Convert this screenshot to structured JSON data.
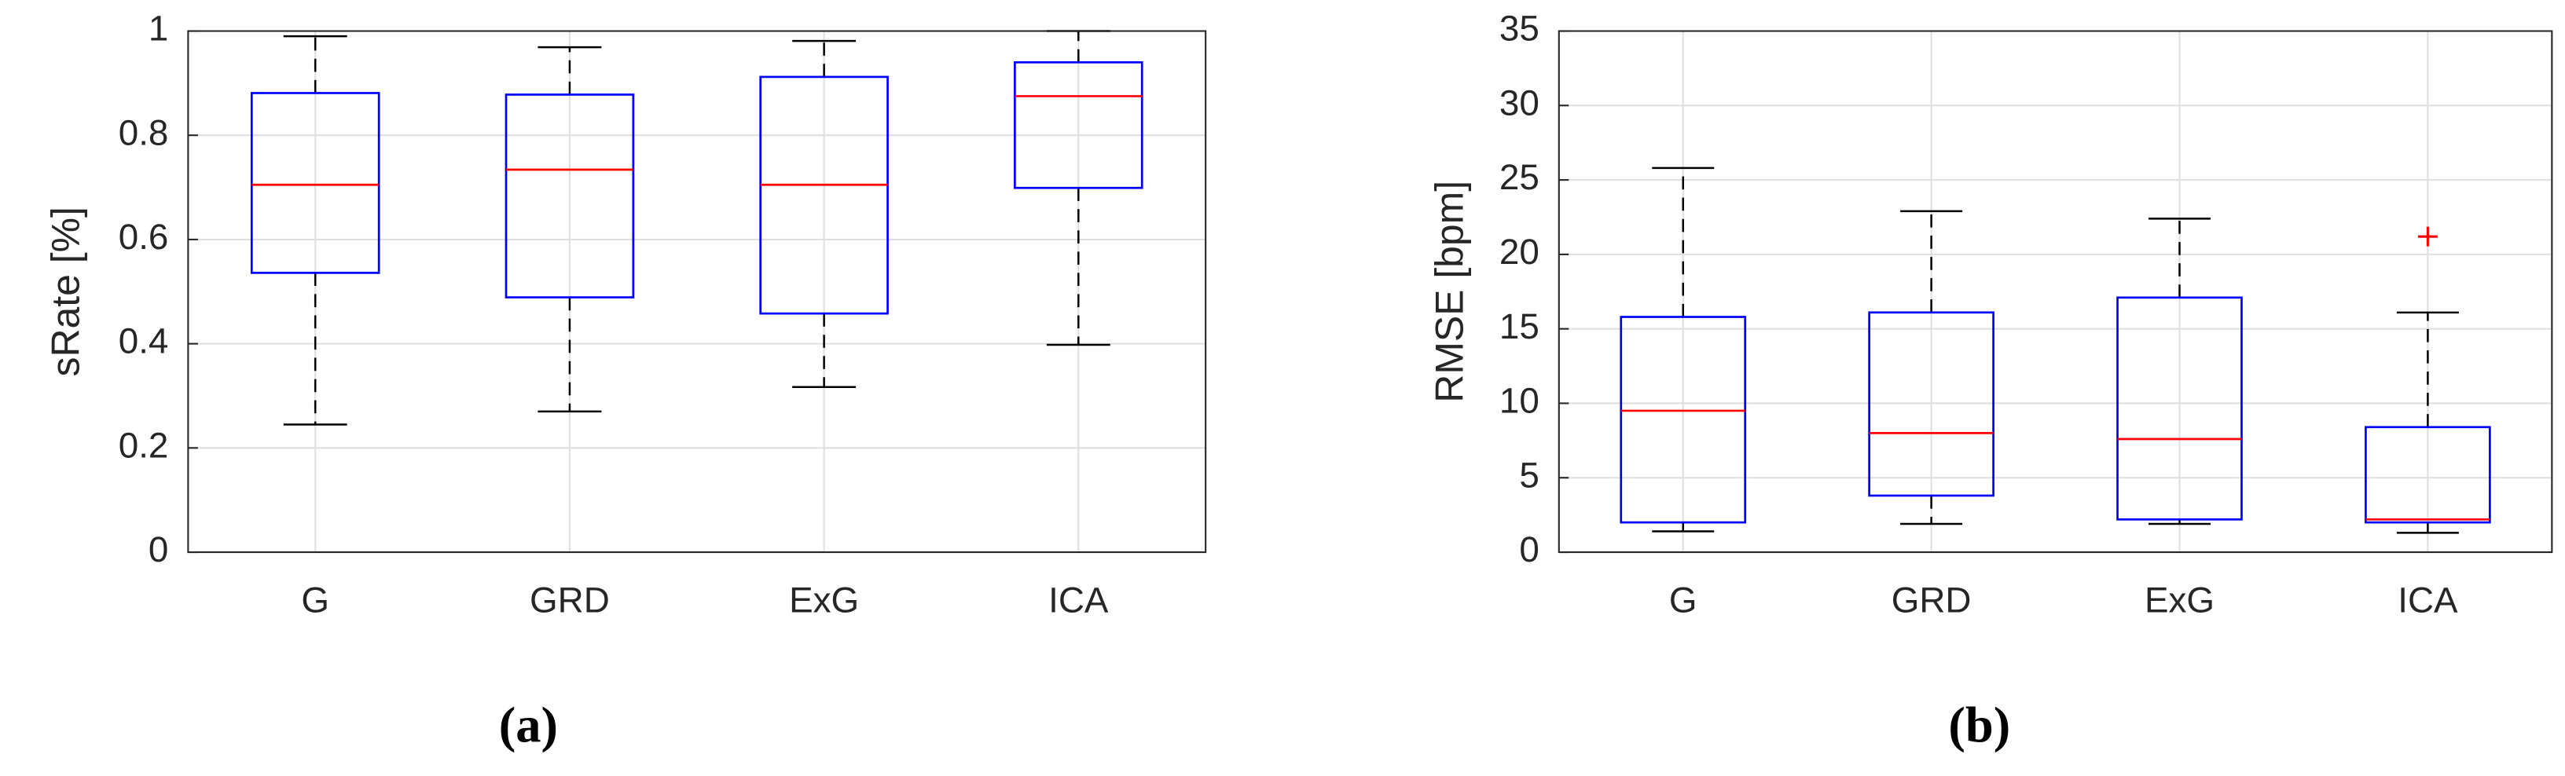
{
  "chart_data": [
    {
      "type": "box",
      "caption": "(a)",
      "ylabel": "sRate [%]",
      "categories": [
        "G",
        "GRD",
        "ExG",
        "ICA"
      ],
      "ylim": [
        0,
        1
      ],
      "yticks": [
        0,
        0.2,
        0.4,
        0.6,
        0.8,
        1
      ],
      "grid": true,
      "box_color": "#0000ff",
      "median_color": "#ff0000",
      "whisker_color": "#000000",
      "boxes": [
        {
          "whisker_low": 0.245,
          "q1": 0.536,
          "median": 0.705,
          "q3": 0.881,
          "whisker_high": 0.99,
          "outliers": []
        },
        {
          "whisker_low": 0.27,
          "q1": 0.489,
          "median": 0.734,
          "q3": 0.878,
          "whisker_high": 0.969,
          "outliers": []
        },
        {
          "whisker_low": 0.317,
          "q1": 0.458,
          "median": 0.705,
          "q3": 0.912,
          "whisker_high": 0.981,
          "outliers": []
        },
        {
          "whisker_low": 0.398,
          "q1": 0.699,
          "median": 0.875,
          "q3": 0.94,
          "whisker_high": 1.0,
          "outliers": []
        }
      ]
    },
    {
      "type": "box",
      "caption": "(b)",
      "ylabel": "RMSE [bpm]",
      "categories": [
        "G",
        "GRD",
        "ExG",
        "ICA"
      ],
      "ylim": [
        0,
        35
      ],
      "yticks": [
        0,
        5,
        10,
        15,
        20,
        25,
        30,
        35
      ],
      "grid": true,
      "box_color": "#0000ff",
      "median_color": "#ff0000",
      "whisker_color": "#000000",
      "boxes": [
        {
          "whisker_low": 1.4,
          "q1": 2.0,
          "median": 9.5,
          "q3": 15.8,
          "whisker_high": 25.8,
          "outliers": []
        },
        {
          "whisker_low": 1.9,
          "q1": 3.8,
          "median": 8.0,
          "q3": 16.1,
          "whisker_high": 22.9,
          "outliers": []
        },
        {
          "whisker_low": 1.9,
          "q1": 2.2,
          "median": 7.6,
          "q3": 17.1,
          "whisker_high": 22.4,
          "outliers": []
        },
        {
          "whisker_low": 1.3,
          "q1": 2.0,
          "median": 2.2,
          "q3": 8.4,
          "whisker_high": 16.1,
          "outliers": [
            21.2
          ]
        }
      ]
    }
  ]
}
